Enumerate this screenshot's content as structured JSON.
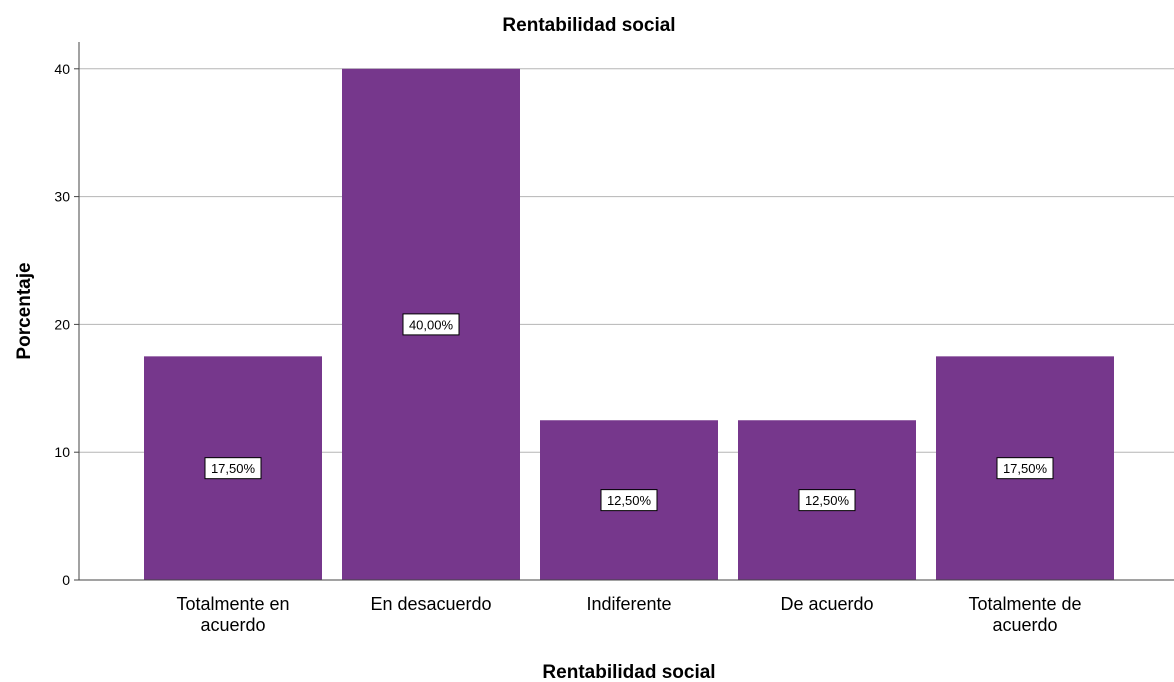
{
  "chart_data": {
    "type": "bar",
    "title": "Rentabilidad social",
    "xlabel": "Rentabilidad social",
    "ylabel": "Porcentaje",
    "categories": [
      [
        "Totalmente en",
        "acuerdo"
      ],
      [
        "En desacuerdo"
      ],
      [
        "Indiferente"
      ],
      [
        "De acuerdo"
      ],
      [
        "Totalmente de",
        "acuerdo"
      ]
    ],
    "values": [
      17.5,
      40.0,
      12.5,
      12.5,
      17.5
    ],
    "data_labels": [
      "17,50%",
      "40,00%",
      "12,50%",
      "12,50%",
      "17,50%"
    ],
    "yticks": [
      0,
      10,
      20,
      30,
      40
    ],
    "ylim": [
      0,
      42
    ],
    "grid": true,
    "bar_color": "#76378c",
    "grid_color": "#b5b5b5"
  }
}
